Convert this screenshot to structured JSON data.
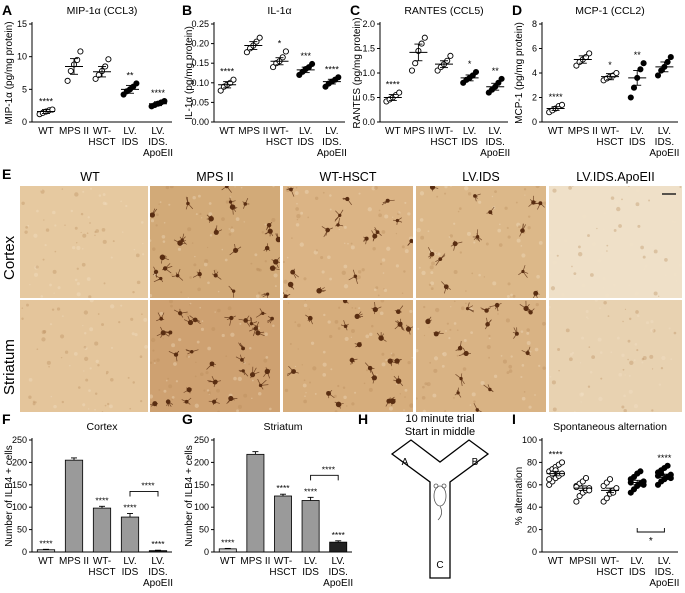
{
  "panel_labels": {
    "a": "A",
    "b": "B",
    "c": "C",
    "d": "D",
    "e": "E",
    "f": "F",
    "g": "G",
    "h": "H",
    "i": "I"
  },
  "colors": {
    "dark_fill": "#222222",
    "gray_fill": "#9a9a9a",
    "light_fill": "#cfcfcf",
    "tissue_base": "#d9b98c",
    "cell": "#5a2e12"
  },
  "chart_data": [
    {
      "panel": "A",
      "type": "scatter",
      "title": "MIP-1α (CCL3)",
      "ylabel": "MIP-1α (pg/mg protein)",
      "yticks": [
        "0",
        "5",
        "10",
        "15"
      ],
      "ylim": [
        0,
        15
      ],
      "categories": [
        [
          "WT"
        ],
        [
          "MPS II"
        ],
        [
          "WT-",
          "HSCT"
        ],
        [
          "LV.",
          "IDS"
        ],
        [
          "LV.",
          "IDS.",
          "ApoEII"
        ]
      ],
      "means": [
        1.6,
        8.5,
        7.7,
        5.0,
        2.8
      ],
      "sem": [
        0.3,
        1.2,
        0.8,
        0.6,
        0.3
      ],
      "points": [
        [
          1.2,
          1.4,
          1.6,
          1.8,
          1.9
        ],
        [
          6.3,
          7.8,
          8.8,
          9.5,
          10.8
        ],
        [
          6.6,
          7.2,
          7.8,
          8.5,
          9.6
        ],
        [
          4.2,
          4.7,
          5.0,
          5.4,
          5.9
        ],
        [
          2.4,
          2.6,
          2.8,
          3.0,
          3.2
        ]
      ],
      "sig": [
        "****",
        "",
        "",
        "**",
        "****"
      ]
    },
    {
      "panel": "B",
      "type": "scatter",
      "title": "IL-1α",
      "ylabel": "IL-1α (pg/mg protein)",
      "yticks": [
        "0.00",
        "0.05",
        "0.10",
        "0.15",
        "0.20",
        "0.25"
      ],
      "ylim": [
        0,
        0.25
      ],
      "categories": [
        [
          "WT"
        ],
        [
          "MPS II"
        ],
        [
          "WT-",
          "HSCT"
        ],
        [
          "LV.",
          "IDS"
        ],
        [
          "LV.",
          "IDS.",
          "ApoEII"
        ]
      ],
      "means": [
        0.095,
        0.195,
        0.155,
        0.133,
        0.103
      ],
      "sem": [
        0.008,
        0.01,
        0.009,
        0.007,
        0.006
      ],
      "points": [
        [
          0.08,
          0.09,
          0.095,
          0.1,
          0.108
        ],
        [
          0.178,
          0.188,
          0.195,
          0.205,
          0.215
        ],
        [
          0.14,
          0.15,
          0.155,
          0.165,
          0.18
        ],
        [
          0.12,
          0.128,
          0.135,
          0.14,
          0.148
        ],
        [
          0.09,
          0.098,
          0.103,
          0.108,
          0.114
        ]
      ],
      "sig": [
        "****",
        "",
        "*",
        "***",
        "****"
      ]
    },
    {
      "panel": "C",
      "type": "scatter",
      "title": "RANTES (CCL5)",
      "ylabel": "RANTES (pg/mg protein)",
      "yticks": [
        "0.0",
        "0.5",
        "1.0",
        "1.5",
        "2.0"
      ],
      "ylim": [
        0,
        2.0
      ],
      "categories": [
        [
          "WT"
        ],
        [
          "MPS II"
        ],
        [
          "WT-",
          "HSCT"
        ],
        [
          "LV.",
          "IDS"
        ],
        [
          "LV.",
          "IDS.",
          "ApoEII"
        ]
      ],
      "means": [
        0.5,
        1.42,
        1.18,
        0.9,
        0.72
      ],
      "sem": [
        0.06,
        0.17,
        0.07,
        0.06,
        0.07
      ],
      "points": [
        [
          0.42,
          0.46,
          0.5,
          0.55,
          0.6
        ],
        [
          1.05,
          1.2,
          1.45,
          1.6,
          1.72
        ],
        [
          1.05,
          1.12,
          1.18,
          1.25,
          1.35
        ],
        [
          0.8,
          0.86,
          0.9,
          0.95,
          1.02
        ],
        [
          0.6,
          0.66,
          0.72,
          0.8,
          0.88
        ]
      ],
      "sig": [
        "****",
        "",
        "",
        "*",
        "**"
      ]
    },
    {
      "panel": "D",
      "type": "scatter",
      "title": "MCP-1 (CCL2)",
      "ylabel": "MCP-1 (pg/mg protein)",
      "yticks": [
        "0",
        "2",
        "4",
        "6",
        "8"
      ],
      "ylim": [
        0,
        8
      ],
      "categories": [
        [
          "WT"
        ],
        [
          "MPS II"
        ],
        [
          "WT-",
          "HSCT"
        ],
        [
          "LV.",
          "IDS"
        ],
        [
          "LV.",
          "IDS.",
          "ApoEII"
        ]
      ],
      "means": [
        1.1,
        5.1,
        3.7,
        3.6,
        4.5
      ],
      "sem": [
        0.15,
        0.3,
        0.25,
        0.6,
        0.4
      ],
      "points": [
        [
          0.8,
          0.95,
          1.1,
          1.3,
          1.4
        ],
        [
          4.6,
          4.9,
          5.1,
          5.3,
          5.6
        ],
        [
          3.4,
          3.55,
          3.7,
          3.8,
          4.0
        ],
        [
          2.0,
          2.8,
          3.6,
          4.3,
          4.8
        ],
        [
          3.8,
          4.2,
          4.5,
          4.9,
          5.3
        ]
      ],
      "sig": [
        "****",
        "",
        "*",
        "**",
        ""
      ]
    },
    {
      "panel": "F",
      "type": "bar",
      "title": "Cortex",
      "ylabel": "Number of ILB4 + cells",
      "yticks": [
        "0",
        "50",
        "100",
        "150",
        "200",
        "250"
      ],
      "ylim": [
        0,
        250
      ],
      "categories": [
        [
          "WT"
        ],
        [
          "MPS II"
        ],
        [
          "WT-",
          "HSCT"
        ],
        [
          "LV.",
          "IDS"
        ],
        [
          "LV.",
          "IDS.",
          "ApoEII"
        ]
      ],
      "values": [
        5,
        205,
        98,
        78,
        3
      ],
      "sem": [
        1,
        5,
        4,
        8,
        1
      ],
      "sig": [
        "****",
        "",
        "****",
        "****",
        "****"
      ],
      "bracket": "****"
    },
    {
      "panel": "G",
      "type": "bar",
      "title": "Striatum",
      "ylabel": "Number of ILB4 + cells",
      "yticks": [
        "0",
        "50",
        "100",
        "150",
        "200",
        "250"
      ],
      "ylim": [
        0,
        250
      ],
      "categories": [
        [
          "WT"
        ],
        [
          "MPS II"
        ],
        [
          "WT-",
          "HSCT"
        ],
        [
          "LV.",
          "IDS"
        ],
        [
          "LV.",
          "IDS.",
          "ApoEII"
        ]
      ],
      "values": [
        7,
        218,
        125,
        115,
        22
      ],
      "sem": [
        1,
        6,
        4,
        7,
        3
      ],
      "sig": [
        "****",
        "",
        "****",
        "****",
        "****"
      ],
      "bracket": "****"
    },
    {
      "panel": "I",
      "type": "scatter",
      "title": "Spontaneous alternation",
      "ylabel": "% alternation",
      "yticks": [
        "0",
        "20",
        "40",
        "60",
        "80",
        "100"
      ],
      "ylim": [
        0,
        100
      ],
      "categories": [
        [
          "WT"
        ],
        [
          "MPSII"
        ],
        [
          "WT-",
          "HSCT"
        ],
        [
          "LV.",
          "IDS"
        ],
        [
          "LV.",
          "IDS.",
          "ApoEII"
        ]
      ],
      "means": [
        70,
        57,
        55,
        62,
        68
      ],
      "sem": [
        2,
        2,
        2,
        2,
        1.5
      ],
      "points": [
        [
          60,
          63,
          66,
          68,
          70,
          72,
          74,
          76,
          78,
          80,
          65,
          70,
          73
        ],
        [
          45,
          50,
          53,
          55,
          57,
          59,
          61,
          63,
          66,
          55,
          58
        ],
        [
          45,
          48,
          52,
          55,
          57,
          59,
          62,
          65,
          53
        ],
        [
          53,
          56,
          59,
          61,
          63,
          65,
          67,
          70,
          72,
          60,
          62
        ],
        [
          60,
          63,
          65,
          67,
          69,
          71,
          73,
          75,
          77,
          66,
          68,
          70
        ]
      ],
      "sig": [
        "****",
        "",
        "",
        "",
        "****"
      ],
      "bracket": "*"
    }
  ],
  "micrographs": {
    "columns": [
      "WT",
      "MPS II",
      "WT-HSCT",
      "LV.IDS",
      "LV.IDS.ApoEII"
    ],
    "rows": [
      "Cortex",
      "Striatum"
    ]
  },
  "maze": {
    "title_line1": "10 minute trial",
    "title_line2": "Start in middle",
    "arm_a": "A",
    "arm_b": "B",
    "arm_c": "C"
  }
}
